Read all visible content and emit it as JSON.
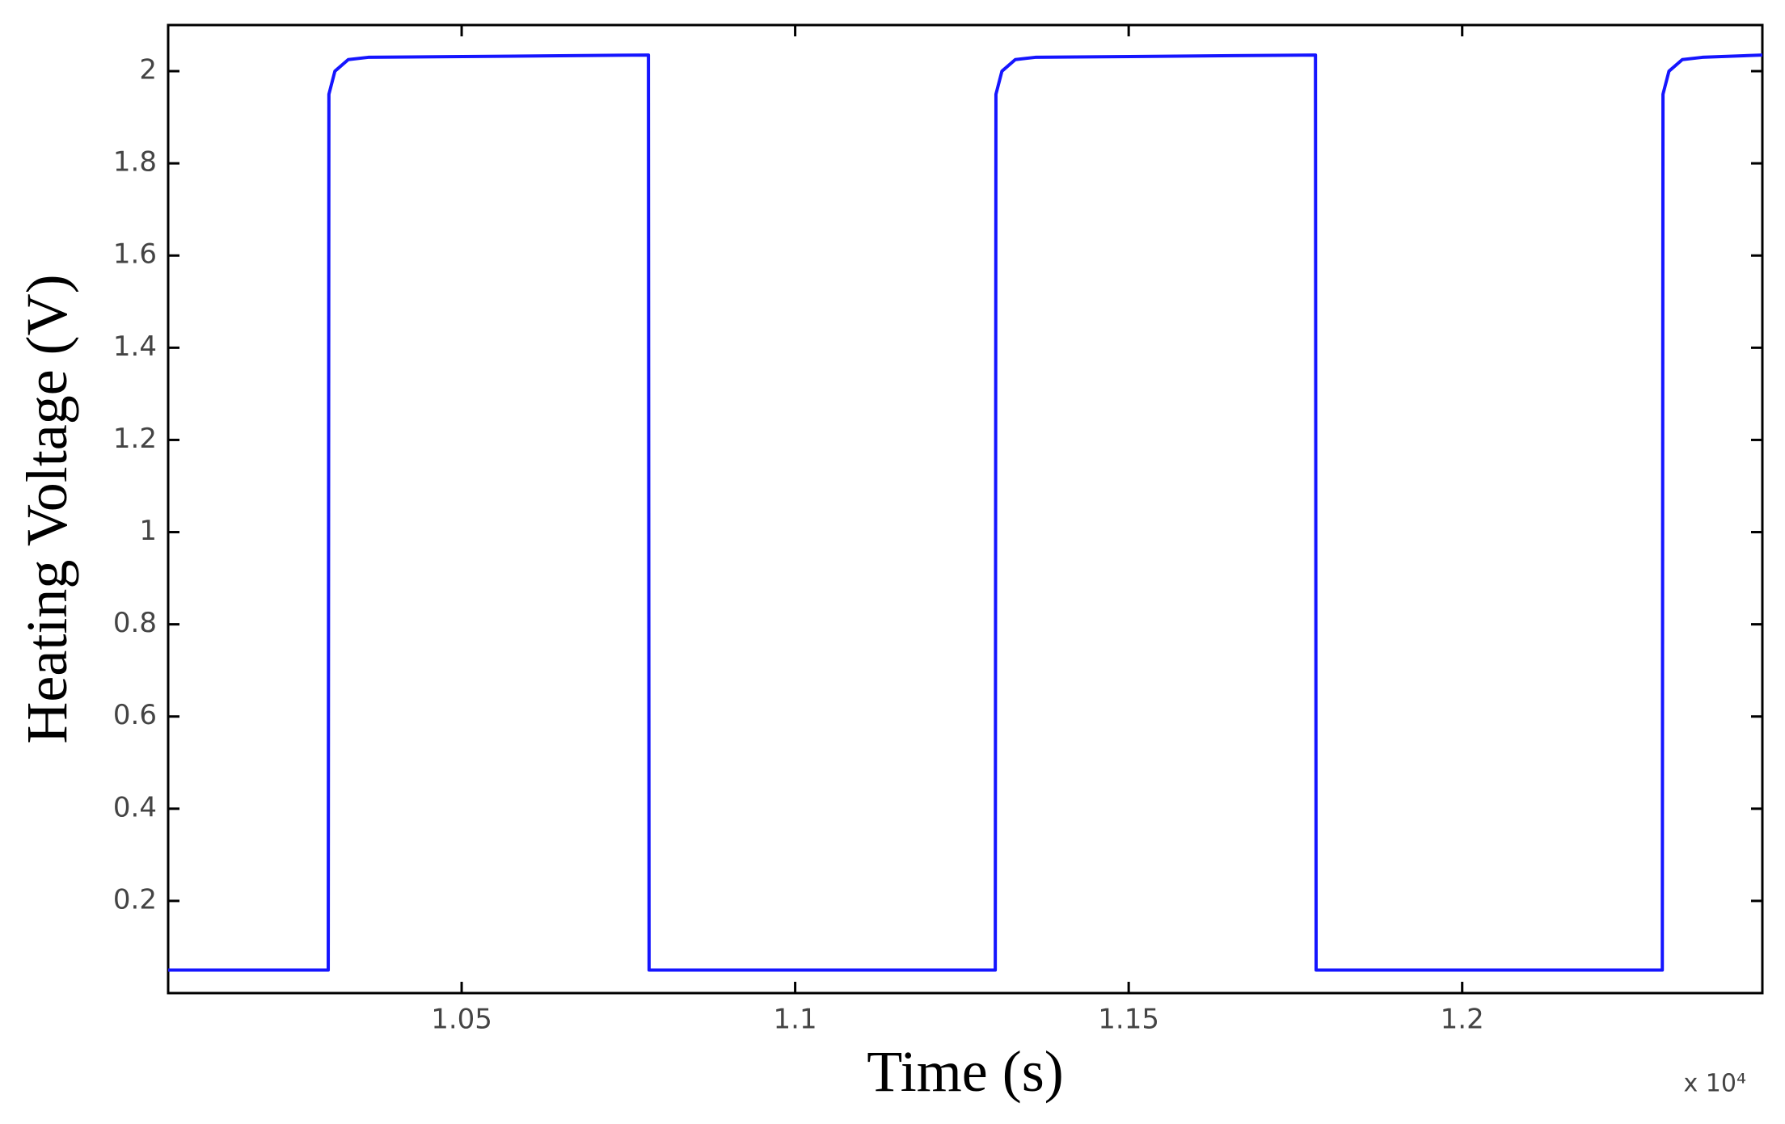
{
  "chart_data": {
    "type": "line",
    "x_label": "Time (s)",
    "y_label": "Heating Voltage (V)",
    "x_multiplier": "x 10⁴",
    "series": [
      {
        "color": "#1515ff",
        "x": [
          1.006,
          1.03,
          1.0301,
          1.031,
          1.033,
          1.036,
          1.078,
          1.0781,
          1.13,
          1.1301,
          1.131,
          1.133,
          1.136,
          1.178,
          1.1781,
          1.23,
          1.2301,
          1.231,
          1.233,
          1.236,
          1.245
        ],
        "values": [
          0.05,
          0.05,
          1.95,
          2.0,
          2.025,
          2.03,
          2.035,
          0.05,
          0.05,
          1.95,
          2.0,
          2.025,
          2.03,
          2.035,
          0.05,
          0.05,
          1.95,
          2.0,
          2.025,
          2.03,
          2.035
        ]
      }
    ],
    "xlim": [
      1.006,
      1.245
    ],
    "xticks": [
      1.05,
      1.1,
      1.15,
      1.2
    ],
    "ylim": [
      0,
      2.1
    ],
    "yticks": [
      0.2,
      0.4,
      0.6,
      0.8,
      1,
      1.2,
      1.4,
      1.6,
      1.8,
      2
    ],
    "grid": false
  }
}
